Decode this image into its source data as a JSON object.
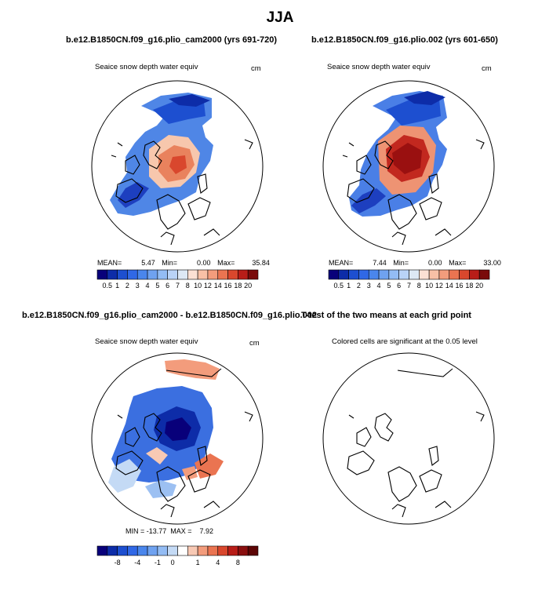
{
  "page_title": "JJA",
  "panels": [
    {
      "title": "b.e12.B1850CN.f09_g16.plio_cam2000 (yrs 691-720)",
      "variable": "Seaice snow depth water equiv",
      "units": "cm",
      "stats": {
        "mean_label": "MEAN=",
        "mean": "5.47",
        "min_label": "Min=",
        "min": "0.00",
        "max_label": "Max=",
        "max": "35.84"
      }
    },
    {
      "title": "b.e12.B1850CN.f09_g16.plio.002 (yrs 601-650)",
      "variable": "Seaice snow depth water equiv",
      "units": "cm",
      "stats": {
        "mean_label": "MEAN=",
        "mean": "7.44",
        "min_label": "Min=",
        "min": "0.00",
        "max_label": "Max=",
        "max": "33.00"
      }
    },
    {
      "title": "b.e12.B1850CN.f09_g16.plio_cam2000 - b.e12.B1850CN.f09_g16.plio.002",
      "variable": "Seaice snow depth water equiv",
      "units": "cm",
      "stats_line": "MIN = -13.77  MAX =    7.92"
    },
    {
      "title": "T-test of the two means at each grid point",
      "note": "Colored cells are significant at the 0.05 level"
    }
  ],
  "chart_data": [
    {
      "type": "heatmap",
      "title": "b.e12.B1850CN.f09_g16.plio_cam2000 (yrs 691-720)",
      "subtitle": "Seaice snow depth water equiv",
      "units": "cm",
      "projection": "north polar stereographic",
      "colorbar_levels": [
        "0.5",
        "1",
        "2",
        "3",
        "4",
        "5",
        "6",
        "7",
        "8",
        "10",
        "12",
        "14",
        "16",
        "18",
        "20"
      ],
      "colorbar_colors": [
        "#08007a",
        "#0d2ca8",
        "#1d4fd0",
        "#3068e6",
        "#4a86ec",
        "#6fa2f0",
        "#93bcf4",
        "#b9d3f7",
        "#dde8f5",
        "#fbe0d4",
        "#f8c0a6",
        "#f39c7c",
        "#ea7451",
        "#d9472d",
        "#b81d18",
        "#7a0b0b"
      ],
      "mean": 5.47,
      "min": 0.0,
      "max": 35.84
    },
    {
      "type": "heatmap",
      "title": "b.e12.B1850CN.f09_g16.plio.002 (yrs 601-650)",
      "subtitle": "Seaice snow depth water equiv",
      "units": "cm",
      "projection": "north polar stereographic",
      "colorbar_levels": [
        "0.5",
        "1",
        "2",
        "3",
        "4",
        "5",
        "6",
        "7",
        "8",
        "10",
        "12",
        "14",
        "16",
        "18",
        "20"
      ],
      "colorbar_colors": [
        "#08007a",
        "#0d2ca8",
        "#1d4fd0",
        "#3068e6",
        "#4a86ec",
        "#6fa2f0",
        "#93bcf4",
        "#b9d3f7",
        "#dde8f5",
        "#fbe0d4",
        "#f8c0a6",
        "#f39c7c",
        "#ea7451",
        "#d9472d",
        "#b81d18",
        "#7a0b0b"
      ],
      "mean": 7.44,
      "min": 0.0,
      "max": 33.0
    },
    {
      "type": "heatmap",
      "title": "b.e12.B1850CN.f09_g16.plio_cam2000 - b.e12.B1850CN.f09_g16.plio.002",
      "subtitle": "Seaice snow depth water equiv",
      "units": "cm",
      "projection": "north polar stereographic",
      "colorbar_tick_labels": [
        "-8",
        "-4",
        "-1",
        "0",
        "1",
        "4",
        "8"
      ],
      "colorbar_colors": [
        "#08007a",
        "#0d2ca8",
        "#1d4fd0",
        "#3068e6",
        "#4a86ec",
        "#6fa2f0",
        "#93bcf4",
        "#c4daf5",
        "#ffffff",
        "#f8c9b4",
        "#f39c7c",
        "#ea7451",
        "#d9472d",
        "#b81d18",
        "#8a0f0f",
        "#5c0505"
      ],
      "min": -13.77,
      "max": 7.92
    },
    {
      "type": "heatmap",
      "title": "T-test of the two means at each grid point",
      "subtitle": "Colored cells are significant at the 0.05 level",
      "projection": "north polar stereographic",
      "colored_cells": 0
    }
  ]
}
